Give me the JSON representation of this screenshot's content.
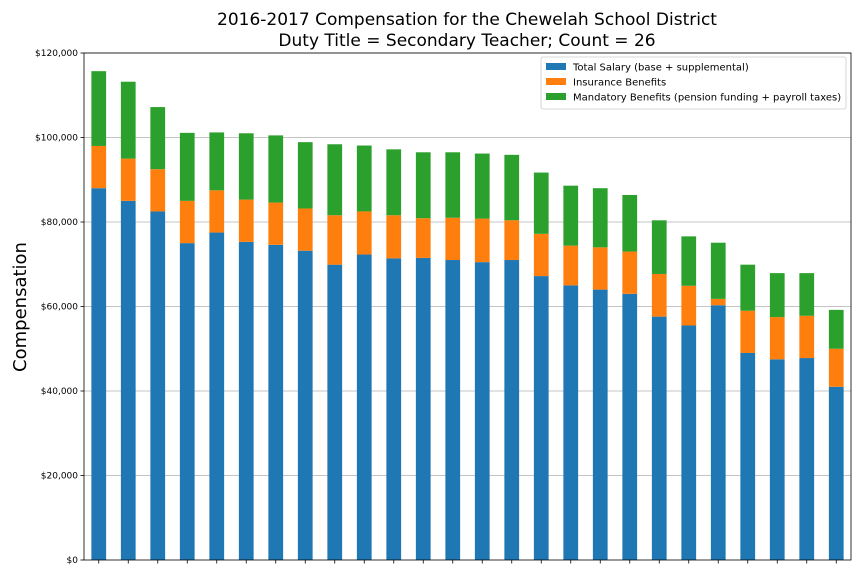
{
  "chart_data": {
    "type": "bar",
    "stacked": true,
    "title": "2016-2017 Compensation for the Chewelah School District",
    "subtitle": "Duty Title = Secondary Teacher; Count = 26",
    "xlabel": "",
    "ylabel": "Compensation",
    "ylim": [
      0,
      120000
    ],
    "yticks": [
      "$0",
      "$20,000",
      "$40,000",
      "$60,000",
      "$80,000",
      "$100,000",
      "$120,000"
    ],
    "grid": "horizontal",
    "legend_position": "top-right",
    "series": [
      {
        "name": "Total Salary (base + supplemental)",
        "color": "#1f77b4",
        "values": [
          88000,
          85000,
          82500,
          75000,
          77500,
          75300,
          74600,
          73200,
          69900,
          72300,
          71400,
          71500,
          71000,
          70500,
          71000,
          67200,
          65000,
          64000,
          63000,
          57600,
          55500,
          60300,
          49000,
          47500,
          47800,
          41000
        ]
      },
      {
        "name": "Insurance Benefits",
        "color": "#ff7f0e",
        "values": [
          10000,
          10000,
          10000,
          10000,
          10000,
          10000,
          10000,
          10000,
          11700,
          10200,
          10200,
          9400,
          10000,
          10300,
          9400,
          10000,
          9400,
          10000,
          10000,
          10100,
          9400,
          1500,
          10000,
          10000,
          10000,
          9000
        ]
      },
      {
        "name": "Mandatory Benefits (pension funding + payroll taxes)",
        "color": "#2ca02c",
        "values": [
          17700,
          18200,
          14700,
          16100,
          13700,
          15700,
          15900,
          15700,
          16800,
          15600,
          15600,
          15600,
          15500,
          15400,
          15500,
          14500,
          14200,
          14000,
          13400,
          12700,
          11700,
          13300,
          10900,
          10400,
          10100,
          9200
        ]
      }
    ]
  }
}
